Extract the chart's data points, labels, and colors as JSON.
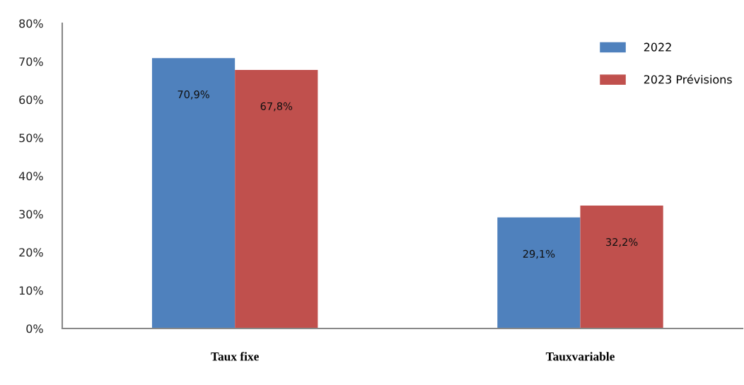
{
  "chart_data": {
    "type": "bar",
    "categories": [
      "Taux fixe",
      "Tauxvariable"
    ],
    "series": [
      {
        "name": "2022",
        "color": "#4f81bd",
        "values": [
          70.9,
          29.1
        ],
        "value_labels": [
          "70,9%",
          "29,1%"
        ]
      },
      {
        "name": "2023 Prévisions",
        "color": "#c0504d",
        "values": [
          67.8,
          32.2
        ],
        "value_labels": [
          "67,8%",
          "32,2%"
        ]
      }
    ],
    "ylim": [
      0,
      80
    ],
    "yticks": [
      {
        "value": 0,
        "label": "0%"
      },
      {
        "value": 10,
        "label": "10%"
      },
      {
        "value": 20,
        "label": "20%"
      },
      {
        "value": 30,
        "label": "30%"
      },
      {
        "value": 40,
        "label": "40%"
      },
      {
        "value": 50,
        "label": "50%"
      },
      {
        "value": 60,
        "label": "60%"
      },
      {
        "value": 70,
        "label": "70%"
      },
      {
        "value": 80,
        "label": "80%"
      }
    ],
    "grid": false,
    "legend": "top right"
  }
}
